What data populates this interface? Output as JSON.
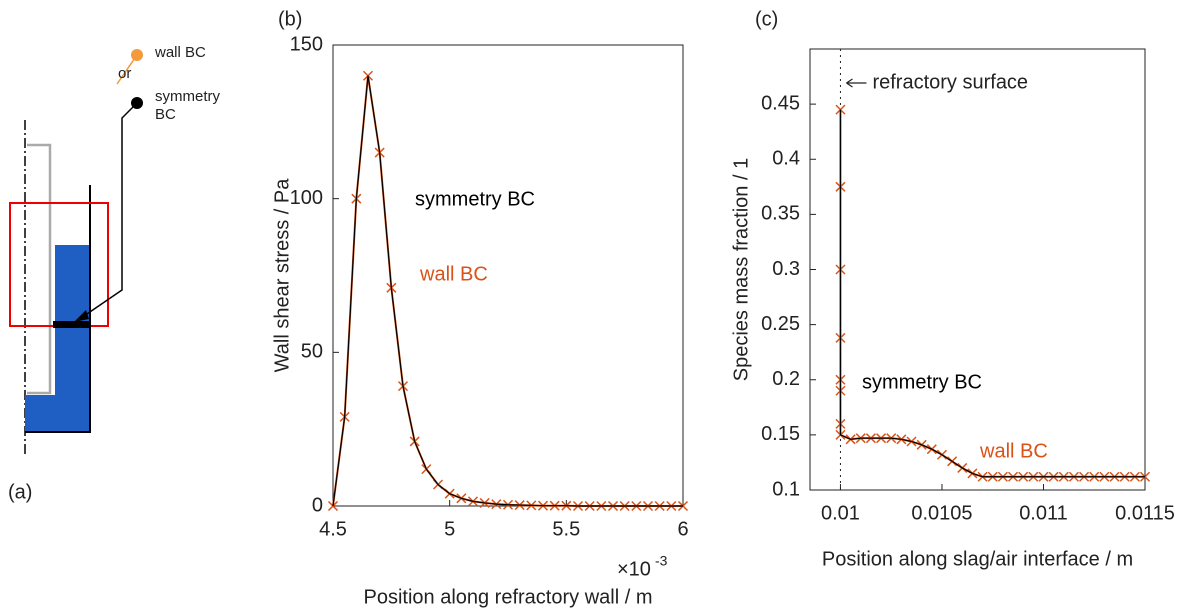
{
  "schematic": {
    "label": "(a)",
    "wall_bc": "wall BC",
    "or": "or",
    "symmetry_bc": [
      "symmetry",
      "BC"
    ]
  },
  "chart_data": [
    {
      "type": "line",
      "panel_label": "(b)",
      "x_label": "Position along refractory wall / m",
      "y_label": "Wall shear stress / Pa",
      "x_multiplier": {
        "base": "×10",
        "exponent": "-3"
      },
      "x": [
        0.0045,
        0.00455,
        0.0046,
        0.00465,
        0.0047,
        0.00475,
        0.0048,
        0.00485,
        0.0049,
        0.00495,
        0.005,
        0.00505,
        0.0051,
        0.00515,
        0.0052,
        0.00525,
        0.0053,
        0.00535,
        0.0054,
        0.00545,
        0.0055,
        0.00555,
        0.0056,
        0.00565,
        0.0057,
        0.00575,
        0.0058,
        0.00585,
        0.0059,
        0.00595,
        0.006
      ],
      "series": [
        {
          "name": "wall BC",
          "color": "#d95319",
          "marker": "x",
          "values": [
            0,
            29,
            100,
            140,
            115,
            71,
            39,
            21,
            12,
            7,
            4,
            2.5,
            1.5,
            1,
            0.6,
            0.4,
            0.3,
            0.2,
            0.1,
            0.1,
            0.1,
            0,
            0,
            0,
            0,
            0,
            0,
            0,
            0,
            0,
            0
          ]
        },
        {
          "name": "symmetry BC",
          "color": "#000000",
          "values": [
            0,
            29,
            100,
            140,
            115,
            71,
            39,
            21,
            12,
            7,
            4,
            2.5,
            1.5,
            1,
            0.6,
            0.4,
            0.3,
            0.2,
            0.1,
            0.1,
            0.1,
            0,
            0,
            0,
            0,
            0,
            0,
            0,
            0,
            0,
            0
          ]
        }
      ],
      "xlim": [
        0.0045,
        0.006
      ],
      "xticks": [
        {
          "value": 0.0045,
          "label": "4.5"
        },
        {
          "value": 0.005,
          "label": "5"
        },
        {
          "value": 0.0055,
          "label": "5.5"
        },
        {
          "value": 0.006,
          "label": "6"
        }
      ],
      "ylim": [
        0,
        150
      ],
      "yticks": [
        0,
        50,
        100,
        150
      ]
    },
    {
      "type": "line",
      "panel_label": "(c)",
      "x_label": "Position along slag/air interface / m",
      "y_label": "Species mass fraction / 1",
      "vline": {
        "value": 0.01,
        "label": "refractory surface"
      },
      "x": [
        0.01,
        0.01,
        0.01,
        0.01,
        0.01,
        0.01,
        0.01,
        0.01,
        0.01005,
        0.0101,
        0.01015,
        0.0102,
        0.01025,
        0.0103,
        0.01035,
        0.0104,
        0.01045,
        0.0105,
        0.01055,
        0.0106,
        0.01065,
        0.0107,
        0.01075,
        0.0108,
        0.01085,
        0.0109,
        0.01095,
        0.011,
        0.01105,
        0.0111,
        0.01115,
        0.0112,
        0.01125,
        0.0113,
        0.01135,
        0.0114,
        0.01145,
        0.0115
      ],
      "series": [
        {
          "name": "wall BC",
          "color": "#d95319",
          "marker": "x",
          "values": [
            0.445,
            0.375,
            0.3,
            0.238,
            0.2,
            0.19,
            0.16,
            0.15,
            0.146,
            0.147,
            0.147,
            0.147,
            0.147,
            0.146,
            0.144,
            0.141,
            0.137,
            0.132,
            0.126,
            0.12,
            0.115,
            0.112,
            0.112,
            0.112,
            0.112,
            0.112,
            0.112,
            0.112,
            0.112,
            0.112,
            0.112,
            0.112,
            0.112,
            0.112,
            0.112,
            0.112,
            0.112,
            0.112
          ]
        },
        {
          "name": "symmetry BC",
          "color": "#000000",
          "values": [
            0.445,
            0.375,
            0.3,
            0.238,
            0.2,
            0.19,
            0.16,
            0.15,
            0.146,
            0.147,
            0.147,
            0.147,
            0.147,
            0.146,
            0.144,
            0.141,
            0.137,
            0.132,
            0.126,
            0.12,
            0.115,
            0.112,
            0.112,
            0.112,
            0.112,
            0.112,
            0.112,
            0.112,
            0.112,
            0.112,
            0.112,
            0.112,
            0.112,
            0.112,
            0.112,
            0.112,
            0.112,
            0.112
          ]
        }
      ],
      "xlim": [
        0.00985,
        0.0115
      ],
      "xticks": [
        0.01,
        0.0105,
        0.011,
        0.0115
      ],
      "ylim": [
        0.1,
        0.5
      ],
      "yticks": [
        0.1,
        0.15,
        0.2,
        0.25,
        0.3,
        0.35,
        0.4,
        0.45
      ]
    }
  ]
}
